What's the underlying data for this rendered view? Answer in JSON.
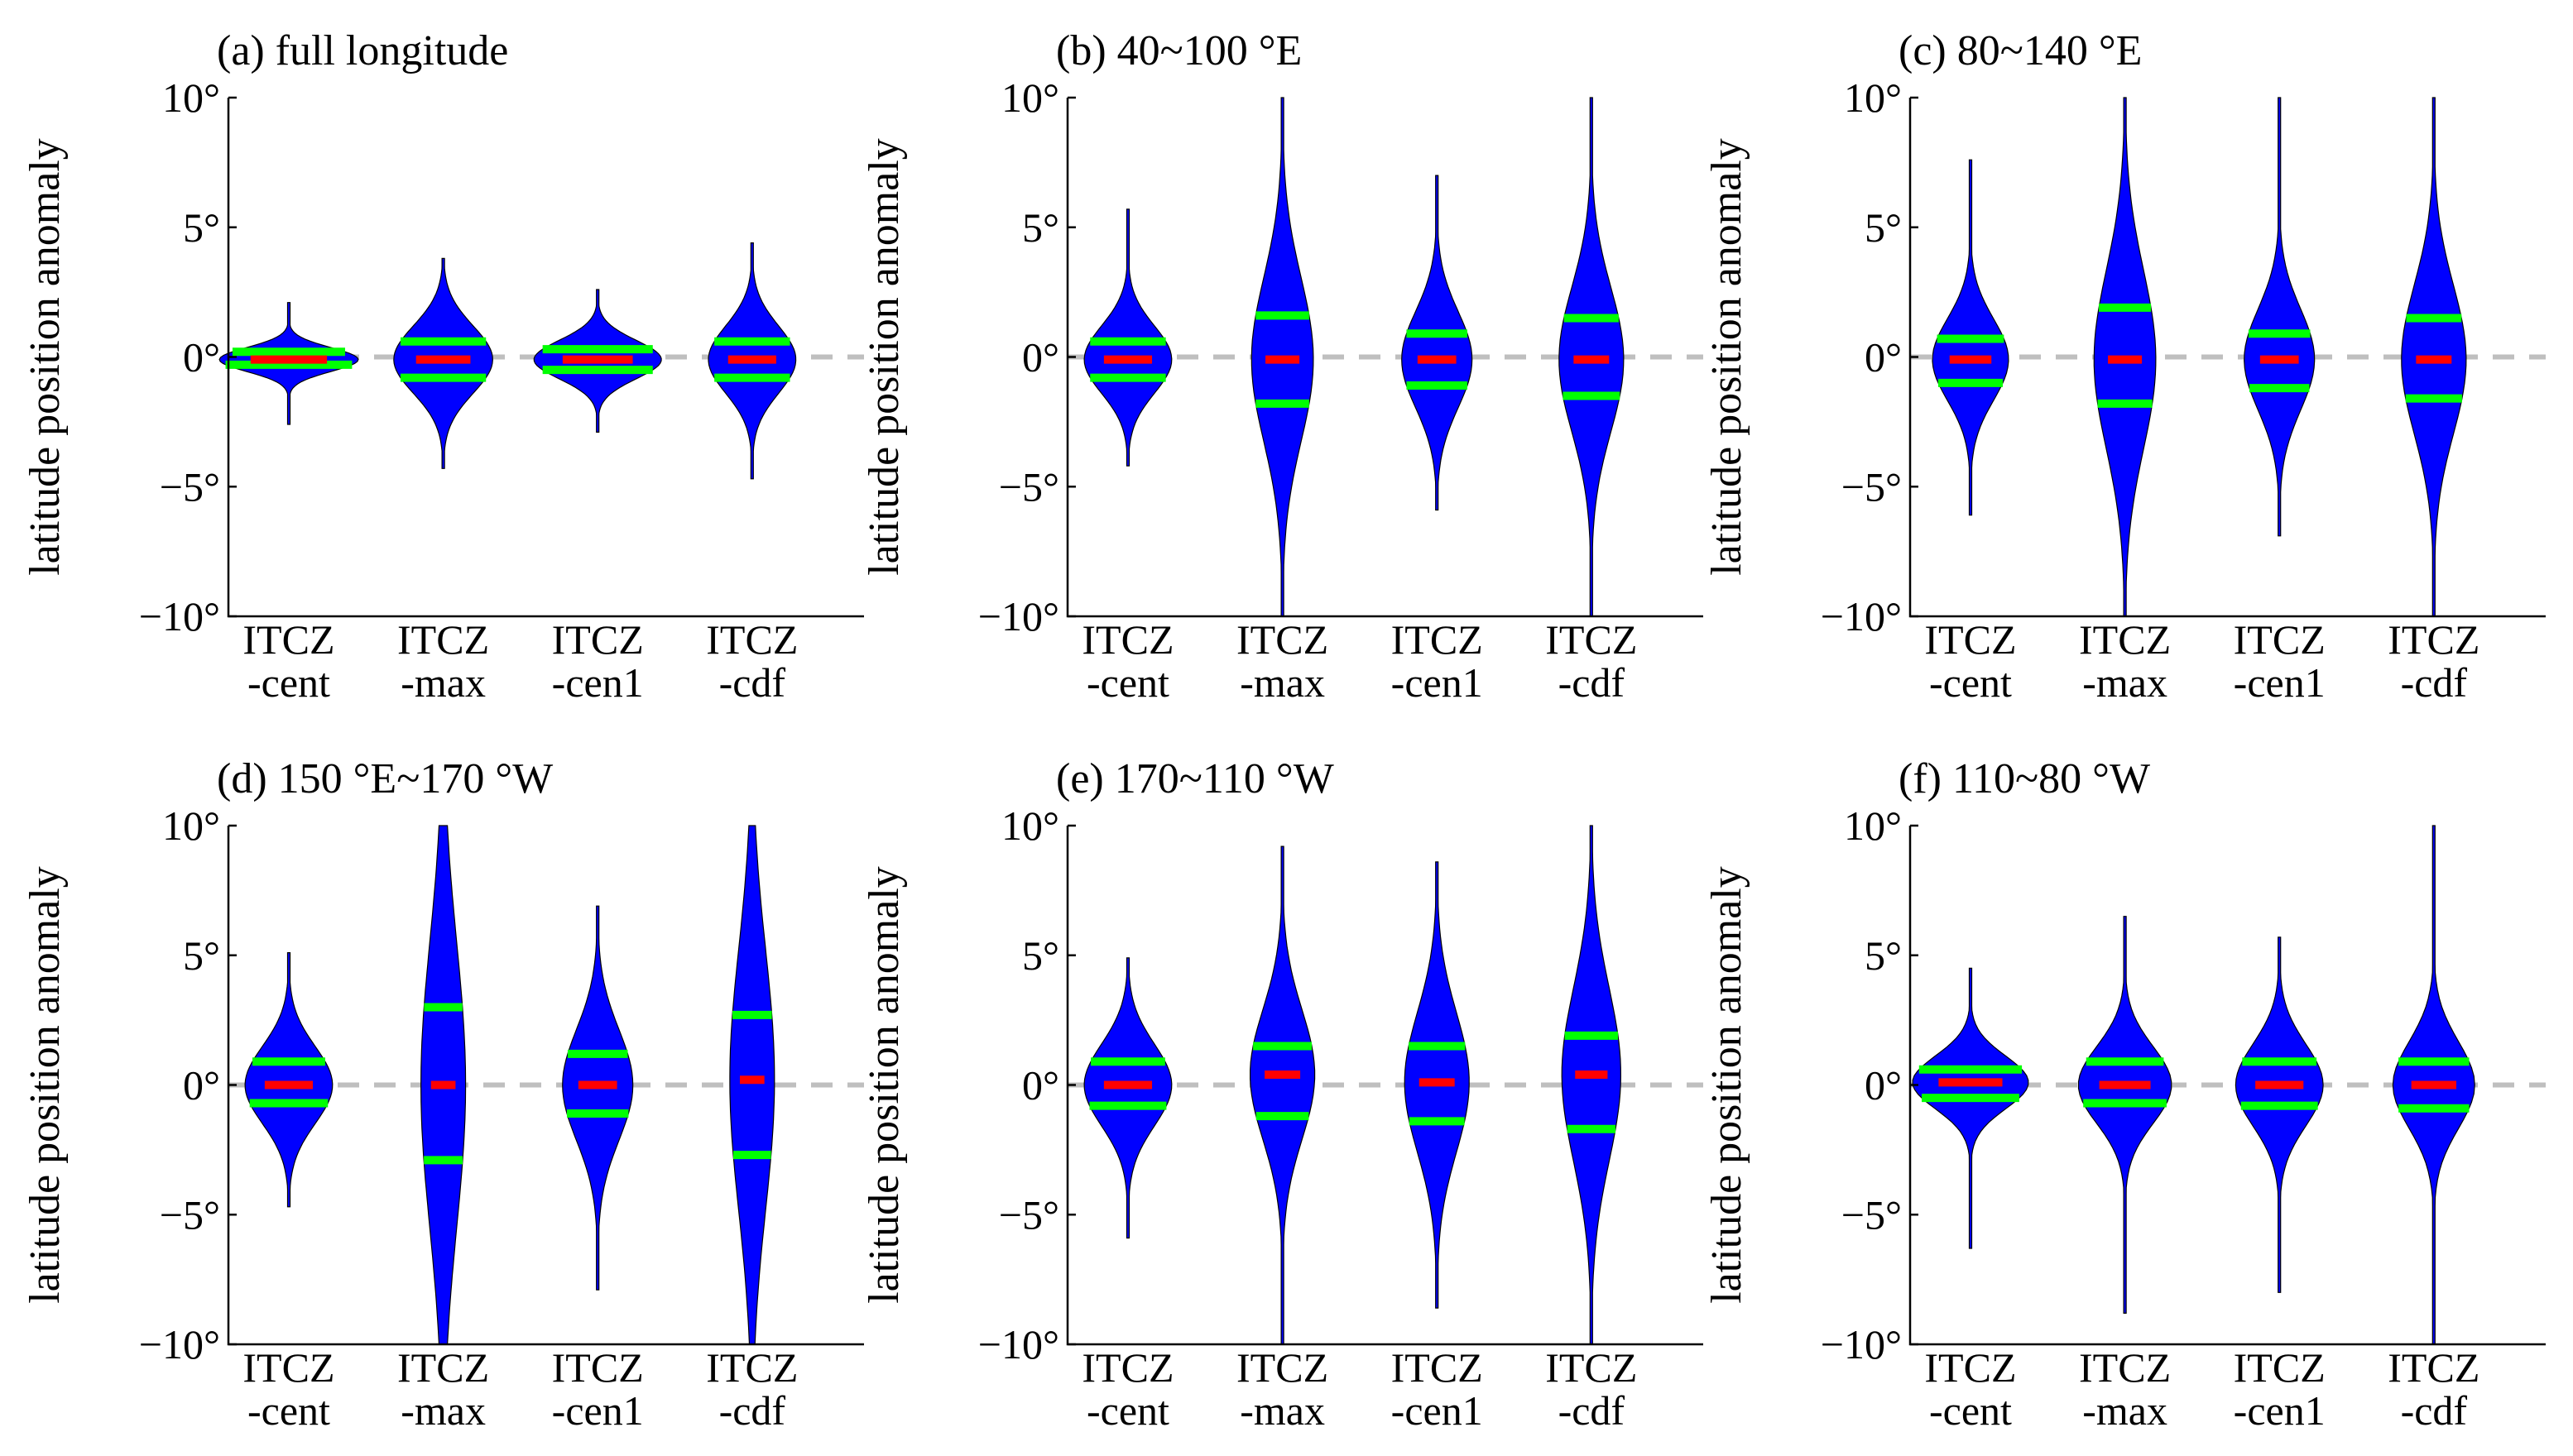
{
  "figure": {
    "y_axis_label": "latitude position anomaly",
    "y_tick_labels": [
      "10°",
      "5°",
      "0°",
      "−5°",
      "−10°"
    ]
  },
  "chart_data": [
    {
      "type": "violin",
      "title": "(a) full longitude",
      "ylabel": "latitude position anomaly",
      "ylim": [
        -10,
        10
      ],
      "yticks": [
        10,
        5,
        0,
        -5,
        -10
      ],
      "zero_line": true,
      "categories": [
        [
          "ITCZ",
          "-cent"
        ],
        [
          "ITCZ",
          "-max"
        ],
        [
          "ITCZ",
          "-cen1"
        ],
        [
          "ITCZ",
          "-cdf"
        ]
      ],
      "distributions": [
        {
          "min": -2.6,
          "max": 2.1,
          "q1": -0.3,
          "median": -0.1,
          "q3": 0.2,
          "spread": 2.2
        },
        {
          "min": -4.3,
          "max": 3.8,
          "q1": -0.8,
          "median": -0.1,
          "q3": 0.6,
          "spread": 1.5
        },
        {
          "min": -2.9,
          "max": 2.6,
          "q1": -0.5,
          "median": -0.1,
          "q3": 0.3,
          "spread": 2.0
        },
        {
          "min": -4.7,
          "max": 4.4,
          "q1": -0.8,
          "median": -0.1,
          "q3": 0.6,
          "spread": 1.3
        }
      ]
    },
    {
      "type": "violin",
      "title": "(b) 40~100 °E",
      "ylabel": "latitude position anomaly",
      "ylim": [
        -10,
        10
      ],
      "yticks": [
        10,
        5,
        0,
        -5,
        -10
      ],
      "zero_line": true,
      "categories": [
        [
          "ITCZ",
          "-cent"
        ],
        [
          "ITCZ",
          "-max"
        ],
        [
          "ITCZ",
          "-cen1"
        ],
        [
          "ITCZ",
          "-cdf"
        ]
      ],
      "distributions": [
        {
          "min": -4.2,
          "max": 5.7,
          "q1": -0.8,
          "median": -0.1,
          "q3": 0.6,
          "spread": 1.3
        },
        {
          "min": -10,
          "max": 10,
          "q1": -1.8,
          "median": -0.1,
          "q3": 1.6,
          "spread": 0.85
        },
        {
          "min": -5.9,
          "max": 7.0,
          "q1": -1.1,
          "median": -0.1,
          "q3": 0.9,
          "spread": 1.0
        },
        {
          "min": -10,
          "max": 10,
          "q1": -1.5,
          "median": -0.1,
          "q3": 1.5,
          "spread": 0.9
        }
      ]
    },
    {
      "type": "violin",
      "title": "(c) 80~140 °E",
      "ylabel": "latitude position anomaly",
      "ylim": [
        -10,
        10
      ],
      "yticks": [
        10,
        5,
        0,
        -5,
        -10
      ],
      "zero_line": true,
      "categories": [
        [
          "ITCZ",
          "-cent"
        ],
        [
          "ITCZ",
          "-max"
        ],
        [
          "ITCZ",
          "-cen1"
        ],
        [
          "ITCZ",
          "-cdf"
        ]
      ],
      "distributions": [
        {
          "min": -6.1,
          "max": 7.6,
          "q1": -1.0,
          "median": -0.1,
          "q3": 0.7,
          "spread": 1.1
        },
        {
          "min": -10,
          "max": 10,
          "q1": -1.8,
          "median": -0.1,
          "q3": 1.9,
          "spread": 0.85
        },
        {
          "min": -6.9,
          "max": 10,
          "q1": -1.2,
          "median": -0.1,
          "q3": 0.9,
          "spread": 1.0
        },
        {
          "min": -10,
          "max": 10,
          "q1": -1.6,
          "median": -0.1,
          "q3": 1.5,
          "spread": 0.9
        }
      ]
    },
    {
      "type": "violin",
      "title": "(d) 150 °E~170 °W",
      "ylabel": "latitude position anomaly",
      "ylim": [
        -10,
        10
      ],
      "yticks": [
        10,
        5,
        0,
        -5,
        -10
      ],
      "zero_line": true,
      "categories": [
        [
          "ITCZ",
          "-cent"
        ],
        [
          "ITCZ",
          "-max"
        ],
        [
          "ITCZ",
          "-cen1"
        ],
        [
          "ITCZ",
          "-cdf"
        ]
      ],
      "distributions": [
        {
          "min": -4.7,
          "max": 5.1,
          "q1": -0.7,
          "median": 0.0,
          "q3": 0.9,
          "spread": 1.3
        },
        {
          "min": -10,
          "max": 10,
          "q1": -2.9,
          "median": 0.0,
          "q3": 3.0,
          "spread": 0.55
        },
        {
          "min": -7.9,
          "max": 6.9,
          "q1": -1.1,
          "median": 0.0,
          "q3": 1.2,
          "spread": 1.0
        },
        {
          "min": -10,
          "max": 10,
          "q1": -2.7,
          "median": 0.2,
          "q3": 2.7,
          "spread": 0.55
        }
      ]
    },
    {
      "type": "violin",
      "title": "(e) 170~110 °W",
      "ylabel": "latitude position anomaly",
      "ylim": [
        -10,
        10
      ],
      "yticks": [
        10,
        5,
        0,
        -5,
        -10
      ],
      "zero_line": true,
      "categories": [
        [
          "ITCZ",
          "-cent"
        ],
        [
          "ITCZ",
          "-max"
        ],
        [
          "ITCZ",
          "-cen1"
        ],
        [
          "ITCZ",
          "-cdf"
        ]
      ],
      "distributions": [
        {
          "min": -5.9,
          "max": 4.9,
          "q1": -0.8,
          "median": 0.0,
          "q3": 0.9,
          "spread": 1.3
        },
        {
          "min": -10,
          "max": 9.2,
          "q1": -1.2,
          "median": 0.4,
          "q3": 1.5,
          "spread": 0.9
        },
        {
          "min": -8.6,
          "max": 8.6,
          "q1": -1.4,
          "median": 0.1,
          "q3": 1.5,
          "spread": 0.9
        },
        {
          "min": -10,
          "max": 10,
          "q1": -1.7,
          "median": 0.4,
          "q3": 1.9,
          "spread": 0.8
        }
      ]
    },
    {
      "type": "violin",
      "title": "(f) 110~80 °W",
      "ylabel": "latitude position anomaly",
      "ylim": [
        -10,
        10
      ],
      "yticks": [
        10,
        5,
        0,
        -5,
        -10
      ],
      "zero_line": true,
      "categories": [
        [
          "ITCZ",
          "-cent"
        ],
        [
          "ITCZ",
          "-max"
        ],
        [
          "ITCZ",
          "-cen1"
        ],
        [
          "ITCZ",
          "-cdf"
        ]
      ],
      "distributions": [
        {
          "min": -6.3,
          "max": 4.5,
          "q1": -0.5,
          "median": 0.1,
          "q3": 0.6,
          "spread": 1.8
        },
        {
          "min": -8.8,
          "max": 6.5,
          "q1": -0.7,
          "median": 0.0,
          "q3": 0.9,
          "spread": 1.4
        },
        {
          "min": -8.0,
          "max": 5.7,
          "q1": -0.8,
          "median": 0.0,
          "q3": 0.9,
          "spread": 1.3
        },
        {
          "min": -10,
          "max": 10,
          "q1": -0.9,
          "median": 0.0,
          "q3": 0.9,
          "spread": 1.2
        }
      ]
    }
  ]
}
